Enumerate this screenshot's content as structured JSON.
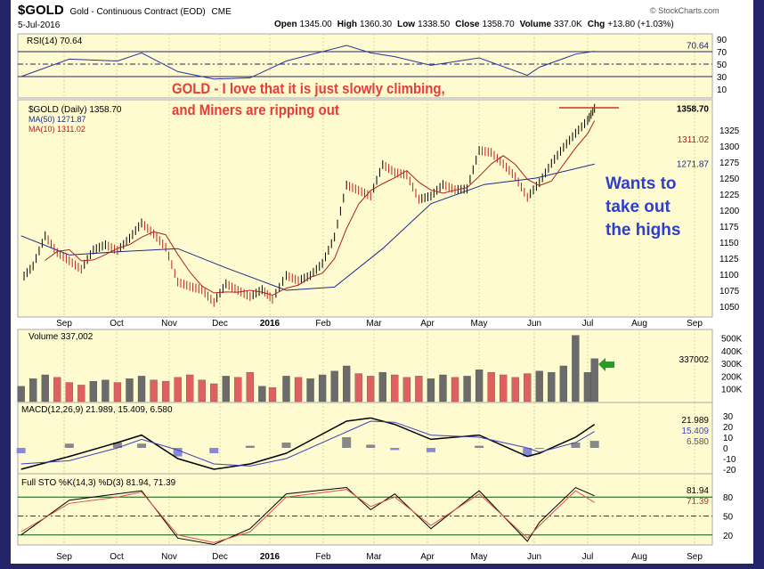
{
  "header": {
    "symbol": "$GOLD",
    "name": "Gold - Continuous Contract (EOD)",
    "exchange": "CME",
    "date": "5-Jul-2016",
    "brand": "© StockCharts.com",
    "quote": [
      {
        "k": "Open",
        "v": "1345.00"
      },
      {
        "k": "High",
        "v": "1360.30"
      },
      {
        "k": "Low",
        "v": "1338.50"
      },
      {
        "k": "Close",
        "v": "1358.70"
      },
      {
        "k": "Volume",
        "v": "337.0K"
      },
      {
        "k": "Chg",
        "v": "+13.80 (+1.03%)"
      }
    ]
  },
  "annotations": {
    "red_line1": "GOLD -  I love that it is just slowly climbing,",
    "red_line2": "and Miners are ripping out",
    "blue_line1": "Wants to take out",
    "blue_line2": "the highs"
  },
  "colors": {
    "background": "#fdfbcf",
    "price": "#000000",
    "ma50": "#1f2a8a",
    "ma10": "#b02020",
    "up_volume": "#6b6b6b",
    "down_volume": "#e06060",
    "annotation_red": "#e53c3c",
    "annotation_blue": "#2e3fc8"
  },
  "chart_data": [
    {
      "type": "line",
      "panel": "rsi",
      "legend": "RSI(14) 70.64",
      "last": "70.64",
      "yticks": [
        90,
        70,
        50,
        30,
        10
      ],
      "ylim": [
        0,
        100
      ],
      "x": [
        "2015-08-07",
        "2015-09-04",
        "2015-10-02",
        "2015-10-16",
        "2015-11-06",
        "2015-11-27",
        "2015-12-18",
        "2016-01-08",
        "2016-02-12",
        "2016-02-26",
        "2016-03-11",
        "2016-04-01",
        "2016-04-29",
        "2016-05-27",
        "2016-06-03",
        "2016-06-24",
        "2016-07-05"
      ],
      "values": [
        30,
        58,
        55,
        68,
        38,
        26,
        28,
        55,
        80,
        68,
        62,
        48,
        60,
        32,
        45,
        66,
        70.64
      ]
    },
    {
      "type": "ohlc",
      "panel": "price",
      "legend": "$GOLD (Daily) 1358.70",
      "last": "1358.70",
      "yticks": [
        1325,
        1300,
        1275,
        1250,
        1225,
        1200,
        1175,
        1150,
        1125,
        1100,
        1075,
        1050
      ],
      "ylim": [
        1040,
        1370
      ],
      "xticks": [
        "Sep",
        "Oct",
        "Nov",
        "Dec",
        "2016",
        "Feb",
        "Mar",
        "Apr",
        "May",
        "Jun",
        "Jul",
        "Aug",
        "Sep"
      ],
      "x": [
        "2015-08-07",
        "2015-08-14",
        "2015-08-21",
        "2015-08-28",
        "2015-09-04",
        "2015-09-11",
        "2015-09-18",
        "2015-09-25",
        "2015-10-02",
        "2015-10-09",
        "2015-10-16",
        "2015-10-23",
        "2015-10-30",
        "2015-11-06",
        "2015-11-13",
        "2015-11-20",
        "2015-11-27",
        "2015-12-04",
        "2015-12-11",
        "2015-12-18",
        "2015-12-25",
        "2015-12-31",
        "2016-01-08",
        "2016-01-15",
        "2016-01-22",
        "2016-01-29",
        "2016-02-05",
        "2016-02-12",
        "2016-02-19",
        "2016-02-26",
        "2016-03-04",
        "2016-03-11",
        "2016-03-18",
        "2016-03-25",
        "2016-04-01",
        "2016-04-08",
        "2016-04-15",
        "2016-04-22",
        "2016-04-29",
        "2016-05-06",
        "2016-05-13",
        "2016-05-20",
        "2016-05-27",
        "2016-06-03",
        "2016-06-10",
        "2016-06-17",
        "2016-06-24",
        "2016-07-01",
        "2016-07-05"
      ],
      "close": [
        1092,
        1113,
        1160,
        1134,
        1121,
        1108,
        1138,
        1146,
        1137,
        1156,
        1180,
        1163,
        1142,
        1088,
        1081,
        1076,
        1056,
        1085,
        1075,
        1065,
        1076,
        1061,
        1098,
        1090,
        1098,
        1117,
        1158,
        1239,
        1231,
        1222,
        1271,
        1259,
        1255,
        1217,
        1222,
        1240,
        1232,
        1233,
        1293,
        1290,
        1272,
        1252,
        1220,
        1243,
        1273,
        1298,
        1320,
        1340,
        1358.7
      ],
      "series": [
        {
          "name": "MA(50) 1271.87",
          "last": "1271.87",
          "x": [
            "2015-08-07",
            "2015-09-04",
            "2015-10-02",
            "2015-11-06",
            "2015-12-04",
            "2016-01-08",
            "2016-02-05",
            "2016-03-04",
            "2016-04-01",
            "2016-05-02",
            "2016-06-01",
            "2016-07-05"
          ],
          "values": [
            1160,
            1130,
            1135,
            1140,
            1110,
            1075,
            1080,
            1140,
            1210,
            1240,
            1250,
            1271.87
          ]
        },
        {
          "name": "MA(10) 1311.02",
          "last": "1311.02"
        }
      ],
      "reference_line": 1360.3
    },
    {
      "type": "bar",
      "panel": "volume",
      "legend": "Volume 337,002",
      "last": "337002",
      "yticks": [
        "500K",
        "400K",
        "300K",
        "200K",
        "100K"
      ],
      "ylim": [
        0,
        550
      ],
      "values": [
        120,
        180,
        210,
        190,
        150,
        130,
        160,
        170,
        150,
        180,
        200,
        170,
        160,
        190,
        210,
        170,
        140,
        200,
        190,
        230,
        120,
        110,
        200,
        190,
        180,
        210,
        240,
        280,
        220,
        200,
        230,
        210,
        190,
        200,
        180,
        210,
        190,
        200,
        250,
        230,
        210,
        190,
        220,
        240,
        230,
        280,
        520,
        230,
        337
      ]
    },
    {
      "type": "line",
      "panel": "macd",
      "legend": "MACD(12,26,9) 21.989, 15.409, 6.580",
      "last": [
        "21.989",
        "15.409",
        "6.580"
      ],
      "yticks": [
        30,
        20,
        10,
        0,
        -10,
        -20
      ],
      "ylim": [
        -25,
        35
      ],
      "macd": [
        -20,
        -8,
        5,
        12,
        -10,
        -20,
        -15,
        -5,
        25,
        28,
        22,
        8,
        12,
        -8,
        -5,
        10,
        21.989
      ],
      "signal": [
        -15,
        -12,
        0,
        8,
        -2,
        -15,
        -17,
        -10,
        15,
        25,
        24,
        12,
        10,
        0,
        -4,
        5,
        15.409
      ]
    },
    {
      "type": "line",
      "panel": "stochastic",
      "legend": "Full STO %K(14,3) %D(3) 81.94, 71.39",
      "last": [
        "81.94",
        "71.39"
      ],
      "yticks": [
        80,
        50,
        20
      ],
      "ylim": [
        0,
        100
      ],
      "k": [
        20,
        75,
        85,
        90,
        15,
        5,
        30,
        85,
        95,
        60,
        85,
        30,
        90,
        10,
        40,
        95,
        81.94
      ],
      "d": [
        25,
        70,
        80,
        88,
        20,
        8,
        25,
        80,
        92,
        65,
        80,
        35,
        85,
        15,
        35,
        90,
        71.39
      ]
    }
  ]
}
